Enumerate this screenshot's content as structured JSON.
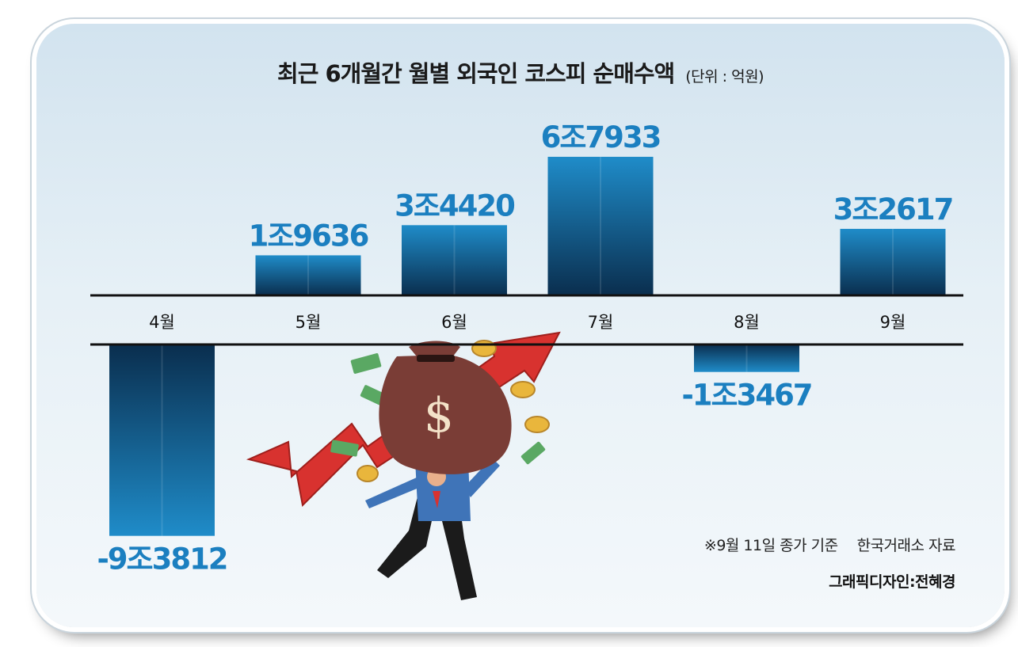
{
  "title": "최근 6개월간 월별 외국인 코스피 순매수액",
  "unit": "(단위 : 억원)",
  "note": "※9월 11일 종가 기준",
  "source": "한국거래소 자료",
  "credit": "그래픽디자인:전혜경",
  "colors": {
    "bar_top": "#1f8cc9",
    "bar_bottom": "#0a2e4e",
    "label": "#1b7fc0"
  },
  "chart_data": {
    "type": "bar",
    "categories": [
      "4월",
      "5월",
      "6월",
      "7월",
      "8월",
      "9월"
    ],
    "values": [
      -93812,
      19636,
      34420,
      67933,
      -13467,
      32617
    ],
    "data_labels": [
      "-9조3812",
      "1조9636",
      "3조4420",
      "6조7933",
      "-1조3467",
      "3조2617"
    ],
    "title": "최근 6개월간 월별 외국인 코스피 순매수액",
    "ylabel": "",
    "xlabel": "",
    "grid": false,
    "legend": "none"
  }
}
